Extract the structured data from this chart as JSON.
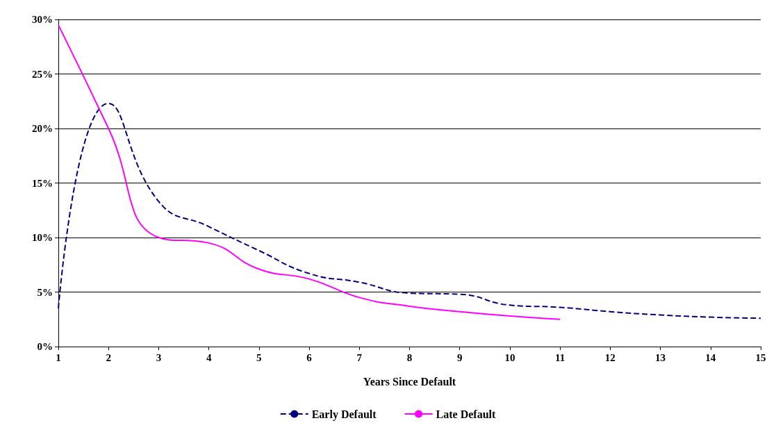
{
  "chart_data": {
    "type": "line",
    "xlabel": "Years Since Default",
    "xlim": [
      1,
      15
    ],
    "xticks": [
      1,
      2,
      3,
      4,
      5,
      6,
      7,
      8,
      9,
      10,
      11,
      12,
      13,
      14,
      15
    ],
    "ylim": [
      0,
      30
    ],
    "yticks": [
      {
        "value": 0,
        "label": "0%"
      },
      {
        "value": 5,
        "label": "5%"
      },
      {
        "value": 10,
        "label": "10%"
      },
      {
        "value": 15,
        "label": "15%"
      },
      {
        "value": 20,
        "label": "20%"
      },
      {
        "value": 25,
        "label": "25%"
      },
      {
        "value": 30,
        "label": "30%"
      }
    ],
    "grid": "y",
    "legend": "bottom",
    "marker": "none",
    "series": [
      {
        "name": "Early Default",
        "color": "#000080",
        "line_style": "dashed",
        "x": [
          1,
          2,
          3,
          4,
          5,
          6,
          7,
          8,
          9,
          10,
          11,
          12,
          13,
          14,
          15
        ],
        "values": [
          3.5,
          22.3,
          13.3,
          11.0,
          8.8,
          6.7,
          5.9,
          4.9,
          4.8,
          3.8,
          3.6,
          3.2,
          2.9,
          2.7,
          2.6
        ]
      },
      {
        "name": "Late Default",
        "color": "#ff00ff",
        "line_style": "solid",
        "x": [
          1,
          2,
          3,
          4,
          5,
          6,
          7,
          8,
          9,
          10,
          11
        ],
        "values": [
          29.5,
          20.0,
          10.0,
          9.5,
          7.1,
          6.2,
          4.5,
          3.7,
          3.2,
          2.8,
          2.5
        ]
      }
    ]
  }
}
